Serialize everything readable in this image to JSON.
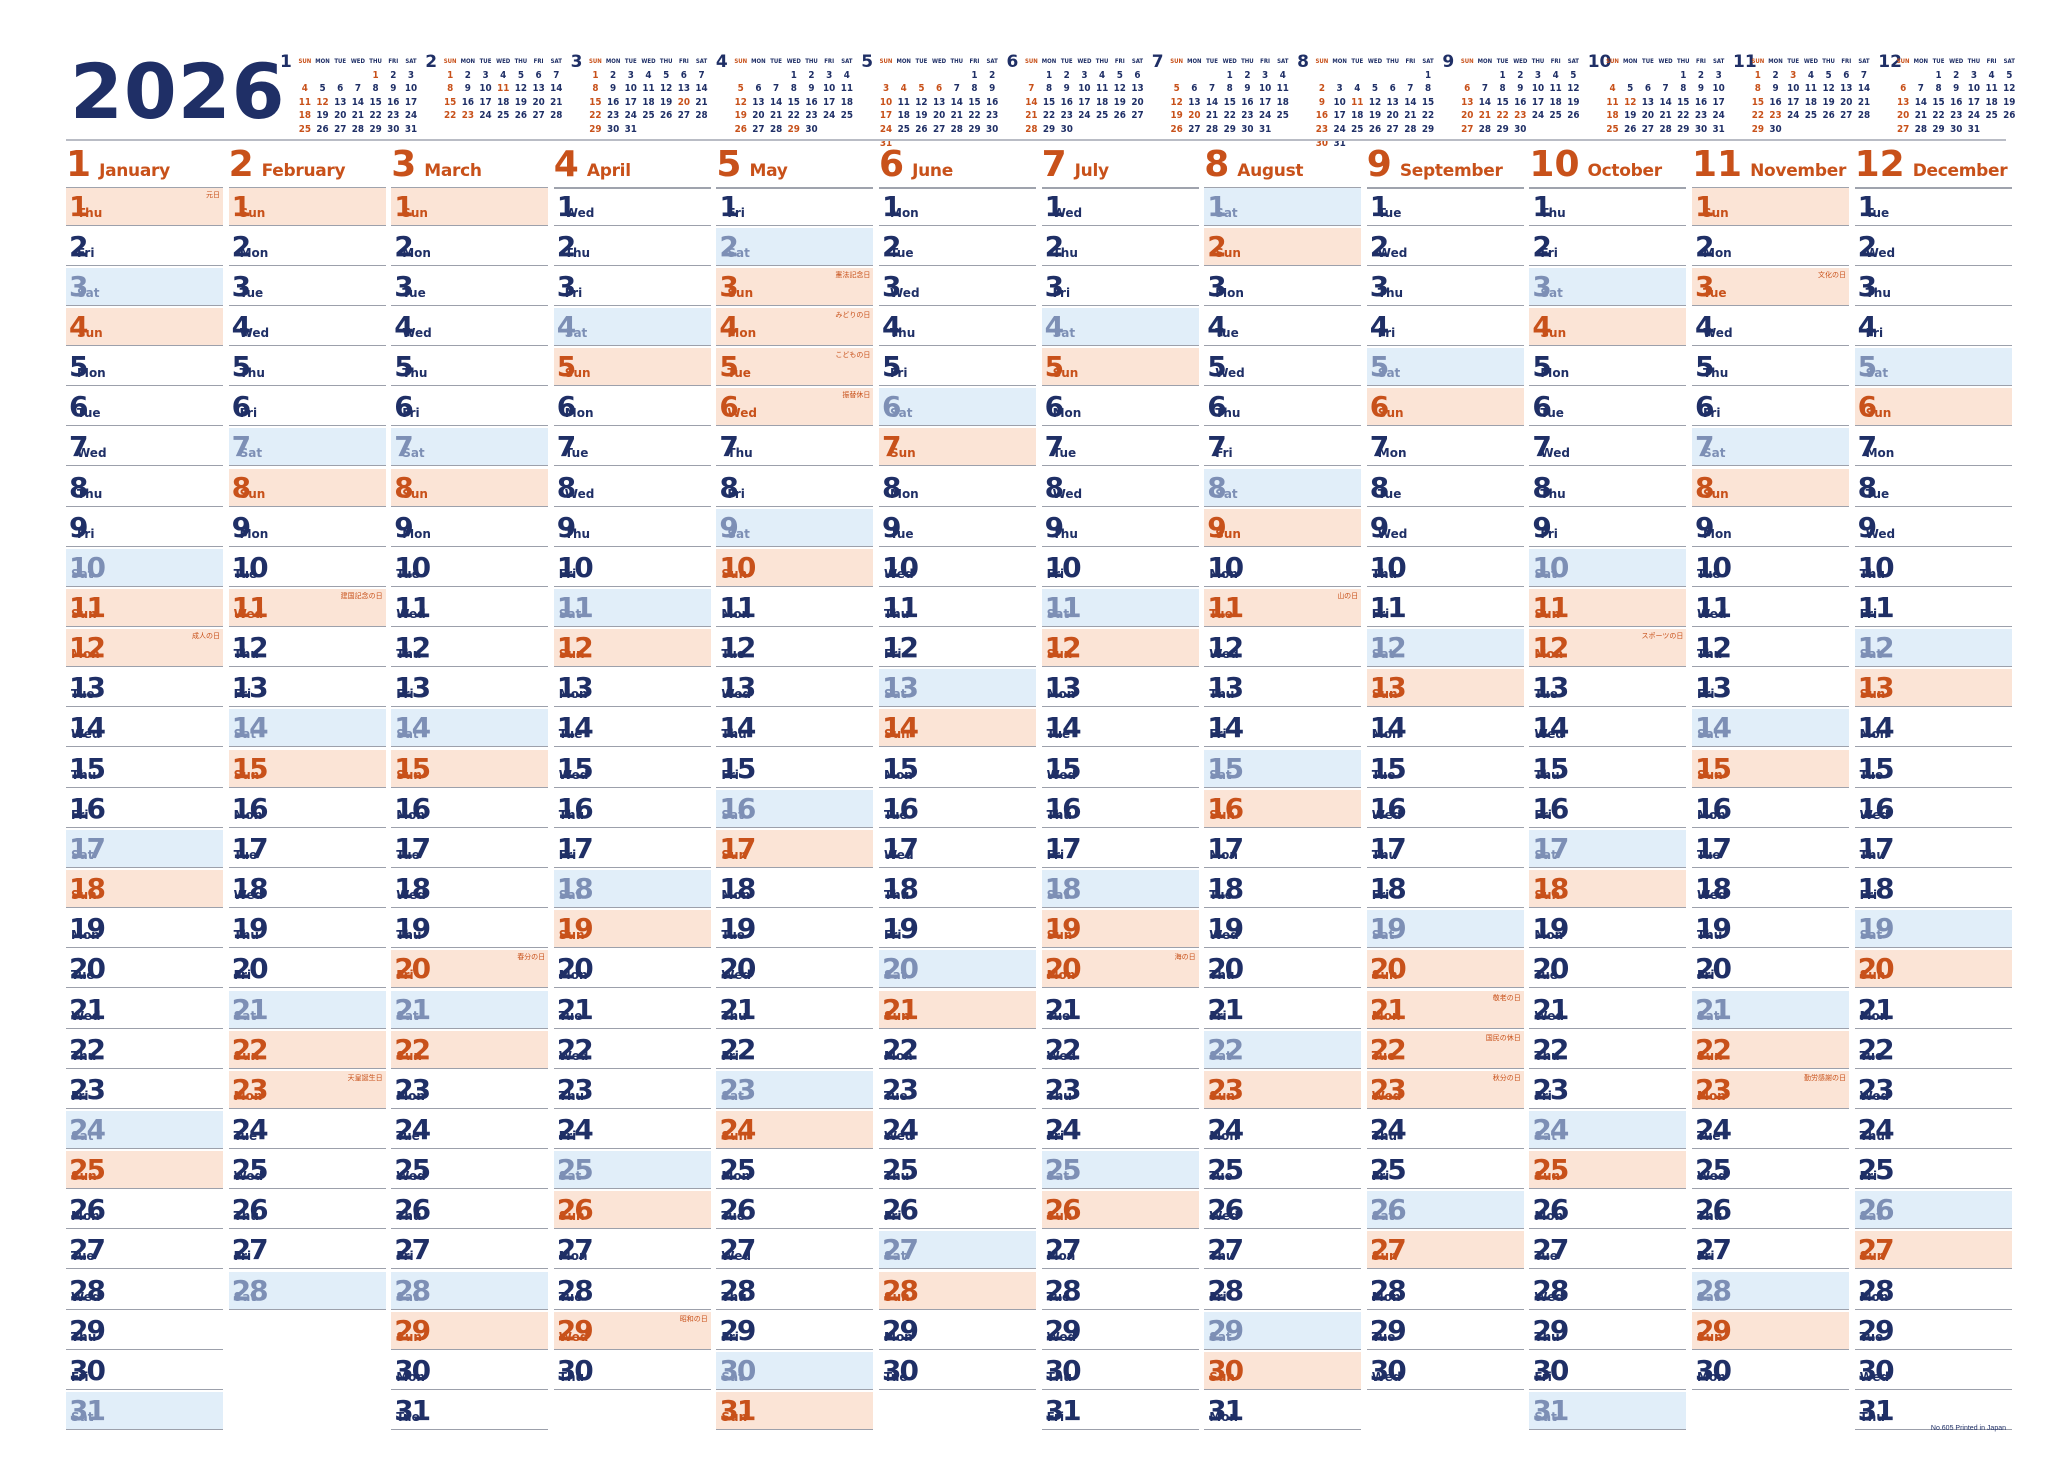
{
  "year": "2026",
  "weekday_headers": [
    "SUN",
    "MON",
    "TUE",
    "WED",
    "THU",
    "FRI",
    "SAT"
  ],
  "footer": "No.605 Printed in Japan",
  "months": [
    {
      "num": "1",
      "name": "January",
      "first_weekday": 4,
      "days": 31,
      "holidays": [
        {
          "day": 1,
          "name": "元日"
        },
        {
          "day": 12,
          "name": "成人の日"
        }
      ]
    },
    {
      "num": "2",
      "name": "February",
      "first_weekday": 0,
      "days": 28,
      "holidays": [
        {
          "day": 11,
          "name": "建国記念の日"
        },
        {
          "day": 23,
          "name": "天皇誕生日"
        }
      ]
    },
    {
      "num": "3",
      "name": "March",
      "first_weekday": 0,
      "days": 31,
      "holidays": [
        {
          "day": 20,
          "name": "春分の日"
        }
      ]
    },
    {
      "num": "4",
      "name": "April",
      "first_weekday": 3,
      "days": 30,
      "holidays": [
        {
          "day": 29,
          "name": "昭和の日"
        }
      ]
    },
    {
      "num": "5",
      "name": "May",
      "first_weekday": 5,
      "days": 31,
      "holidays": [
        {
          "day": 3,
          "name": "憲法記念日"
        },
        {
          "day": 4,
          "name": "みどりの日"
        },
        {
          "day": 5,
          "name": "こどもの日"
        },
        {
          "day": 6,
          "name": "振替休日"
        }
      ]
    },
    {
      "num": "6",
      "name": "June",
      "first_weekday": 1,
      "days": 30,
      "holidays": []
    },
    {
      "num": "7",
      "name": "July",
      "first_weekday": 3,
      "days": 31,
      "holidays": [
        {
          "day": 20,
          "name": "海の日"
        }
      ]
    },
    {
      "num": "8",
      "name": "August",
      "first_weekday": 6,
      "days": 31,
      "holidays": [
        {
          "day": 11,
          "name": "山の日"
        }
      ]
    },
    {
      "num": "9",
      "name": "September",
      "first_weekday": 2,
      "days": 30,
      "holidays": [
        {
          "day": 21,
          "name": "敬老の日"
        },
        {
          "day": 22,
          "name": "国民の休日"
        },
        {
          "day": 23,
          "name": "秋分の日"
        }
      ]
    },
    {
      "num": "10",
      "name": "October",
      "first_weekday": 4,
      "days": 31,
      "holidays": [
        {
          "day": 12,
          "name": "スポーツの日"
        }
      ]
    },
    {
      "num": "11",
      "name": "November",
      "first_weekday": 0,
      "days": 30,
      "holidays": [
        {
          "day": 3,
          "name": "文化の日"
        },
        {
          "day": 23,
          "name": "勤労感謝の日"
        }
      ]
    },
    {
      "num": "12",
      "name": "December",
      "first_weekday": 2,
      "days": 31,
      "holidays": []
    }
  ]
}
